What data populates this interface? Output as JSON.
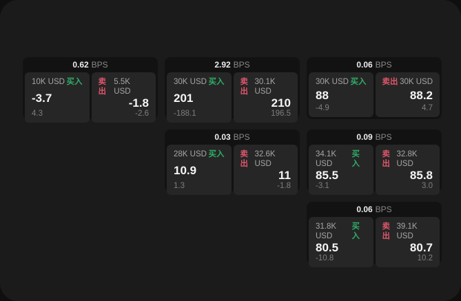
{
  "labels": {
    "bps_unit": "BPS",
    "buy": "买入",
    "sell": "卖出"
  },
  "colors": {
    "canvas_bg": "#1b1b1b",
    "card_bg": "#121212",
    "panel_bg": "#262626",
    "buy_green": "#2fae68",
    "sell_red": "#de556a"
  },
  "cards": [
    {
      "bps": "0.62",
      "buy": {
        "amount": "10K USD",
        "price": "-3.7",
        "delta": "4.3"
      },
      "sell": {
        "amount": "5.5K USD",
        "price": "-1.8",
        "delta": "-2.6"
      }
    },
    {
      "bps": "2.92",
      "buy": {
        "amount": "30K USD",
        "price": "201",
        "delta": "-188.1"
      },
      "sell": {
        "amount": "30.1K USD",
        "price": "210",
        "delta": "196.5"
      }
    },
    {
      "bps": "0.06",
      "buy": {
        "amount": "30K USD",
        "price": "88",
        "delta": "-4.9"
      },
      "sell": {
        "amount": "30K USD",
        "price": "88.2",
        "delta": "4.7"
      }
    },
    {
      "bps": "0.03",
      "buy": {
        "amount": "28K USD",
        "price": "10.9",
        "delta": "1.3"
      },
      "sell": {
        "amount": "32.6K USD",
        "price": "11",
        "delta": "-1.8"
      }
    },
    {
      "bps": "0.09",
      "buy": {
        "amount": "34.1K USD",
        "price": "85.5",
        "delta": "-3.1"
      },
      "sell": {
        "amount": "32.8K USD",
        "price": "85.8",
        "delta": "3.0"
      }
    },
    {
      "bps": "0.06",
      "buy": {
        "amount": "31.8K USD",
        "price": "80.5",
        "delta": "-10.8"
      },
      "sell": {
        "amount": "39.1K USD",
        "price": "80.7",
        "delta": "10.2"
      }
    }
  ]
}
